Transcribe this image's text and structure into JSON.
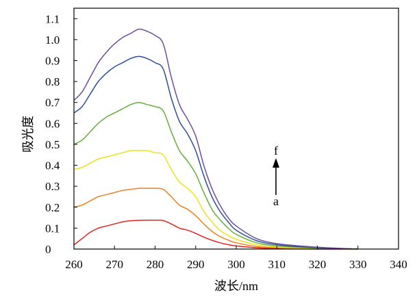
{
  "chart_data": {
    "type": "line",
    "xlabel": "波长/nm",
    "ylabel": "吸光度",
    "xlim": [
      260,
      340
    ],
    "ylim": [
      0,
      1.15
    ],
    "xticks": [
      "260",
      "270",
      "280",
      "290",
      "300",
      "310",
      "320",
      "330",
      "340"
    ],
    "yticks": [
      "0",
      "0.1",
      "0.2",
      "0.3",
      "0.4",
      "0.5",
      "0.6",
      "0.7",
      "0.8",
      "0.9",
      "1.0",
      "1.1"
    ],
    "grid": false,
    "legend": "none",
    "x": [
      260,
      262,
      264,
      266,
      268,
      270,
      272,
      274,
      276,
      278,
      280,
      282,
      284,
      286,
      288,
      290,
      292,
      294,
      296,
      298,
      300,
      305,
      310,
      315,
      320,
      325,
      330
    ],
    "series": [
      {
        "color": "#e5231e",
        "values": [
          0.02,
          0.05,
          0.08,
          0.1,
          0.11,
          0.12,
          0.13,
          0.135,
          0.137,
          0.138,
          0.138,
          0.136,
          0.12,
          0.1,
          0.09,
          0.075,
          0.057,
          0.042,
          0.03,
          0.021,
          0.015,
          0.006,
          0.003,
          0.001,
          0.0,
          0.0,
          0.0
        ]
      },
      {
        "color": "#ef7f1a",
        "values": [
          0.2,
          0.21,
          0.23,
          0.25,
          0.26,
          0.27,
          0.28,
          0.285,
          0.29,
          0.29,
          0.29,
          0.285,
          0.25,
          0.21,
          0.19,
          0.16,
          0.12,
          0.085,
          0.06,
          0.043,
          0.03,
          0.012,
          0.006,
          0.003,
          0.002,
          0.001,
          0.0
        ]
      },
      {
        "color": "#ece21b",
        "values": [
          0.38,
          0.39,
          0.41,
          0.43,
          0.44,
          0.45,
          0.46,
          0.47,
          0.47,
          0.47,
          0.46,
          0.45,
          0.38,
          0.32,
          0.29,
          0.25,
          0.18,
          0.13,
          0.09,
          0.065,
          0.047,
          0.02,
          0.01,
          0.006,
          0.003,
          0.001,
          0.0
        ]
      },
      {
        "color": "#63ad3a",
        "values": [
          0.5,
          0.52,
          0.56,
          0.6,
          0.63,
          0.65,
          0.67,
          0.69,
          0.7,
          0.69,
          0.68,
          0.66,
          0.56,
          0.47,
          0.42,
          0.36,
          0.27,
          0.19,
          0.14,
          0.1,
          0.07,
          0.03,
          0.015,
          0.009,
          0.005,
          0.002,
          0.0
        ]
      },
      {
        "color": "#2a4b9b",
        "values": [
          0.65,
          0.68,
          0.74,
          0.8,
          0.84,
          0.87,
          0.89,
          0.91,
          0.92,
          0.91,
          0.89,
          0.86,
          0.72,
          0.61,
          0.55,
          0.47,
          0.35,
          0.25,
          0.18,
          0.13,
          0.09,
          0.04,
          0.021,
          0.012,
          0.007,
          0.003,
          0.0
        ]
      },
      {
        "color": "#6a4c9c",
        "values": [
          0.71,
          0.75,
          0.82,
          0.89,
          0.94,
          0.98,
          1.01,
          1.03,
          1.05,
          1.04,
          1.02,
          0.98,
          0.82,
          0.69,
          0.62,
          0.54,
          0.4,
          0.29,
          0.21,
          0.15,
          0.11,
          0.05,
          0.026,
          0.016,
          0.009,
          0.004,
          0.0
        ]
      }
    ],
    "annotation": {
      "start_label": "a",
      "end_label": "f",
      "direction": "up"
    }
  }
}
